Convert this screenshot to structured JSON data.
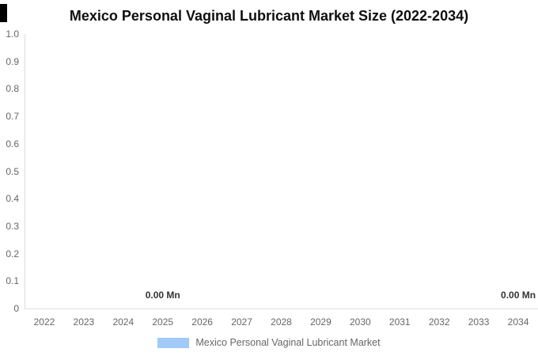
{
  "title": "Mexico Personal Vaginal Lubricant Market Size (2022-2034)",
  "colors": {
    "background": "#ffffff",
    "series_blue": "#A0CAF8",
    "axis_line": "#dddddd",
    "tick_text": "#666666",
    "title_text": "#0f0f0f",
    "value_label_text": "#333333",
    "legend_text": "#666666",
    "corner_mark": "#000000"
  },
  "chart_data": {
    "type": "bar",
    "title": "Mexico Personal Vaginal Lubricant Market Size (2022-2034)",
    "categories": [
      "2022",
      "2023",
      "2024",
      "2025",
      "2026",
      "2027",
      "2028",
      "2029",
      "2030",
      "2031",
      "2032",
      "2033",
      "2034"
    ],
    "series": [
      {
        "name": "Mexico Personal Vaginal Lubricant Market",
        "color": "#A0CAF8",
        "values": [
          0,
          0,
          0,
          0,
          0,
          0,
          0,
          0,
          0,
          0,
          0,
          0,
          0
        ]
      }
    ],
    "xlabel": "",
    "ylabel": "",
    "ylim": [
      0,
      1
    ],
    "y_ticks": [
      "1.0",
      "0.9",
      "0.8",
      "0.7",
      "0.6",
      "0.5",
      "0.4",
      "0.3",
      "0.2",
      "0.1",
      "0"
    ],
    "grid": false,
    "legend_position": "bottom",
    "data_labels": [
      {
        "category": "2025",
        "text": "0.00 Mn"
      },
      {
        "category": "2034",
        "text": "0.00 Mn"
      }
    ]
  },
  "legend": {
    "items": [
      {
        "label": "Mexico Personal Vaginal Lubricant Market",
        "color": "#A0CAF8"
      }
    ]
  }
}
